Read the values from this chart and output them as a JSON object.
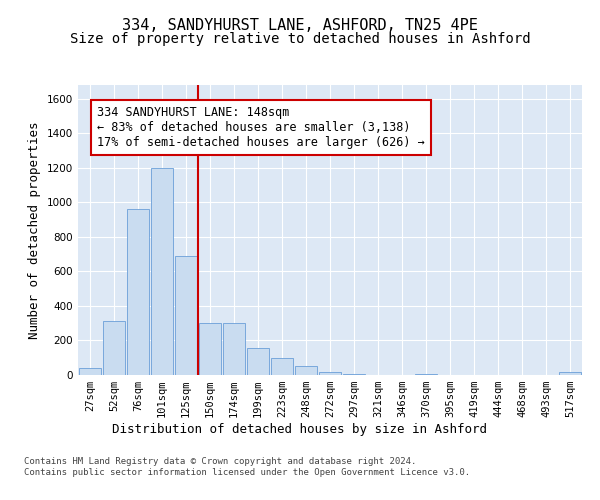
{
  "title": "334, SANDYHURST LANE, ASHFORD, TN25 4PE",
  "subtitle": "Size of property relative to detached houses in Ashford",
  "xlabel": "Distribution of detached houses by size in Ashford",
  "ylabel": "Number of detached properties",
  "categories": [
    "27sqm",
    "52sqm",
    "76sqm",
    "101sqm",
    "125sqm",
    "150sqm",
    "174sqm",
    "199sqm",
    "223sqm",
    "248sqm",
    "272sqm",
    "297sqm",
    "321sqm",
    "346sqm",
    "370sqm",
    "395sqm",
    "419sqm",
    "444sqm",
    "468sqm",
    "493sqm",
    "517sqm"
  ],
  "values": [
    40,
    310,
    960,
    1200,
    690,
    300,
    300,
    155,
    100,
    55,
    20,
    5,
    0,
    0,
    5,
    0,
    0,
    0,
    0,
    0,
    20
  ],
  "bar_color": "#c9dcf0",
  "bar_edge_color": "#6a9fd8",
  "vline_color": "#cc0000",
  "annotation_text": "334 SANDYHURST LANE: 148sqm\n← 83% of detached houses are smaller (3,138)\n17% of semi-detached houses are larger (626) →",
  "annotation_box_color": "#ffffff",
  "annotation_box_edge_color": "#cc0000",
  "ylim": [
    0,
    1680
  ],
  "yticks": [
    0,
    200,
    400,
    600,
    800,
    1000,
    1200,
    1400,
    1600
  ],
  "background_color": "#dde8f5",
  "footer_text": "Contains HM Land Registry data © Crown copyright and database right 2024.\nContains public sector information licensed under the Open Government Licence v3.0.",
  "title_fontsize": 11,
  "subtitle_fontsize": 10,
  "axis_label_fontsize": 9,
  "tick_fontsize": 7.5,
  "annotation_fontsize": 8.5,
  "footer_fontsize": 6.5
}
